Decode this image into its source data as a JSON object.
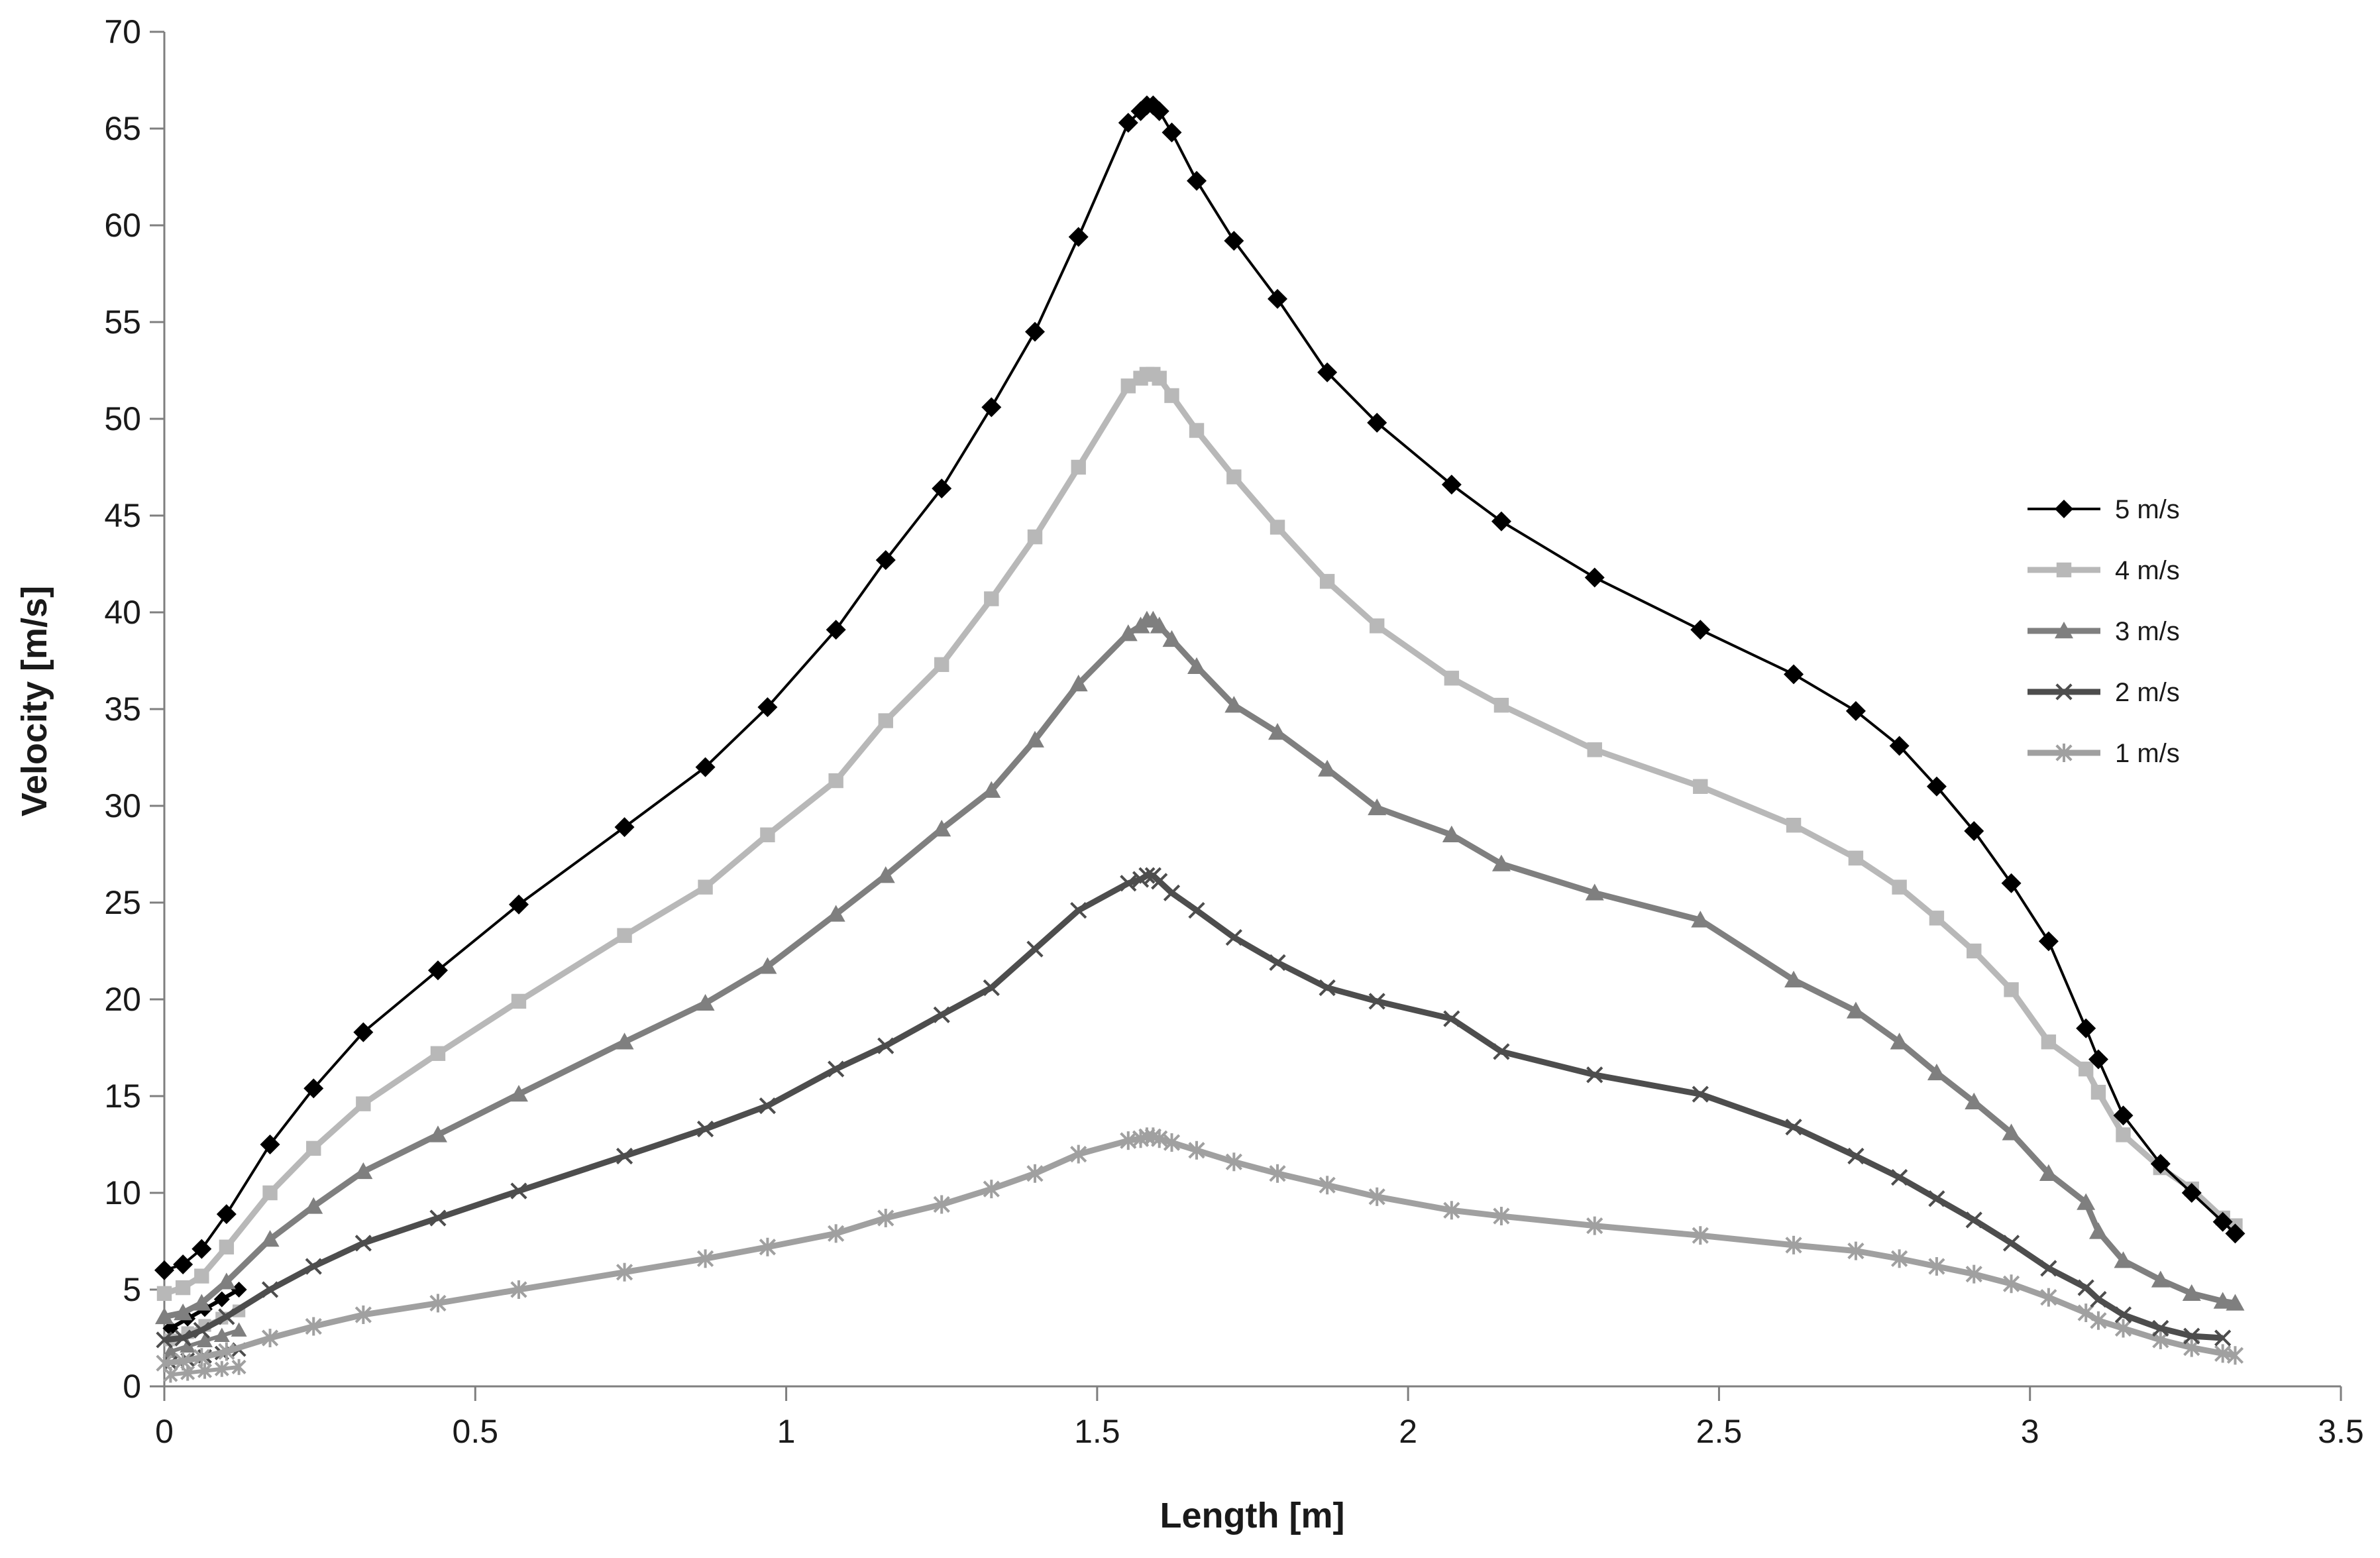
{
  "chart_data": {
    "type": "line",
    "title": "",
    "xlabel": "Length [m]",
    "ylabel": "Velocity [m/s]",
    "xlim": [
      0,
      3.5
    ],
    "ylim": [
      0,
      70
    ],
    "xticks": [
      0,
      0.5,
      1,
      1.5,
      2,
      2.5,
      3,
      3.5
    ],
    "yticks": [
      0,
      5,
      10,
      15,
      20,
      25,
      30,
      35,
      40,
      45,
      50,
      55,
      60,
      65,
      70
    ],
    "xtick_labels": [
      "0",
      "0.5",
      "1",
      "1.5",
      "2",
      "2.5",
      "3",
      "3.5"
    ],
    "ytick_labels": [
      "0",
      "5",
      "10",
      "15",
      "20",
      "25",
      "30",
      "35",
      "40",
      "45",
      "50",
      "55",
      "60",
      "65",
      "70"
    ],
    "grid": false,
    "legend_position": "right",
    "series": [
      {
        "name": "5 m/s",
        "marker": "diamond",
        "color": "#000000",
        "x": [
          0,
          0.03,
          0.06,
          0.1,
          0.17,
          0.24,
          0.32,
          0.44,
          0.57,
          0.74,
          0.87,
          0.97,
          1.08,
          1.16,
          1.25,
          1.33,
          1.4,
          1.47,
          1.55,
          1.57,
          1.58,
          1.59,
          1.6,
          1.62,
          1.66,
          1.72,
          1.79,
          1.87,
          1.95,
          2.07,
          2.15,
          2.3,
          2.47,
          2.62,
          2.72,
          2.79,
          2.85,
          2.91,
          2.97,
          3.03,
          3.09,
          3.11,
          3.15,
          3.21,
          3.26,
          3.31,
          3.33
        ],
        "y": [
          6,
          6.3,
          7.1,
          8.9,
          12.5,
          15.4,
          18.3,
          21.5,
          24.9,
          28.9,
          32.0,
          35.1,
          39.1,
          42.7,
          46.4,
          50.6,
          54.5,
          59.4,
          65.3,
          65.9,
          66.2,
          66.2,
          65.9,
          64.8,
          62.3,
          59.2,
          56.2,
          52.4,
          49.8,
          46.6,
          44.7,
          41.8,
          39.1,
          36.8,
          34.9,
          33.1,
          31.0,
          28.7,
          26.0,
          23.0,
          18.5,
          16.9,
          14.0,
          11.5,
          10.0,
          8.5,
          7.9
        ]
      },
      {
        "name": "4 m/s",
        "marker": "square",
        "color": "#b8b8b8",
        "x": [
          0,
          0.03,
          0.06,
          0.1,
          0.17,
          0.24,
          0.32,
          0.44,
          0.57,
          0.74,
          0.87,
          0.97,
          1.08,
          1.16,
          1.25,
          1.33,
          1.4,
          1.47,
          1.55,
          1.57,
          1.58,
          1.59,
          1.6,
          1.62,
          1.66,
          1.72,
          1.79,
          1.87,
          1.95,
          2.07,
          2.15,
          2.3,
          2.47,
          2.62,
          2.72,
          2.79,
          2.85,
          2.91,
          2.97,
          3.03,
          3.09,
          3.11,
          3.15,
          3.21,
          3.26,
          3.31,
          3.33
        ],
        "y": [
          4.8,
          5.1,
          5.7,
          7.2,
          10.0,
          12.3,
          14.6,
          17.2,
          19.9,
          23.3,
          25.8,
          28.5,
          31.3,
          34.4,
          37.3,
          40.7,
          43.9,
          47.5,
          51.7,
          52.1,
          52.3,
          52.3,
          52.1,
          51.2,
          49.4,
          47.0,
          44.4,
          41.6,
          39.3,
          36.6,
          35.2,
          32.9,
          31.0,
          29.0,
          27.3,
          25.8,
          24.2,
          22.5,
          20.5,
          17.8,
          16.4,
          15.2,
          13.0,
          11.3,
          10.2,
          8.7,
          8.3
        ]
      },
      {
        "name": "3 m/s",
        "marker": "triangle",
        "color": "#7f7f7f",
        "x": [
          0,
          0.03,
          0.06,
          0.1,
          0.17,
          0.24,
          0.32,
          0.44,
          0.57,
          0.74,
          0.87,
          0.97,
          1.08,
          1.16,
          1.25,
          1.33,
          1.4,
          1.47,
          1.55,
          1.57,
          1.58,
          1.59,
          1.6,
          1.62,
          1.66,
          1.72,
          1.79,
          1.87,
          1.95,
          2.07,
          2.15,
          2.3,
          2.47,
          2.62,
          2.72,
          2.79,
          2.85,
          2.91,
          2.97,
          3.03,
          3.09,
          3.11,
          3.15,
          3.21,
          3.26,
          3.31,
          3.33
        ],
        "y": [
          3.6,
          3.8,
          4.3,
          5.4,
          7.6,
          9.3,
          11.1,
          13.0,
          15.1,
          17.8,
          19.8,
          21.7,
          24.4,
          26.4,
          28.8,
          30.8,
          33.4,
          36.3,
          38.9,
          39.3,
          39.6,
          39.6,
          39.3,
          38.6,
          37.2,
          35.2,
          33.8,
          31.9,
          29.9,
          28.5,
          27.0,
          25.5,
          24.1,
          21.0,
          19.4,
          17.8,
          16.2,
          14.7,
          13.1,
          11.0,
          9.5,
          8.0,
          6.5,
          5.5,
          4.8,
          4.4,
          4.3
        ]
      },
      {
        "name": "2 m/s",
        "marker": "x",
        "color": "#4d4d4d",
        "x": [
          0,
          0.03,
          0.06,
          0.1,
          0.17,
          0.24,
          0.32,
          0.44,
          0.57,
          0.74,
          0.87,
          0.97,
          1.08,
          1.16,
          1.25,
          1.33,
          1.4,
          1.47,
          1.55,
          1.57,
          1.58,
          1.59,
          1.6,
          1.62,
          1.66,
          1.72,
          1.79,
          1.87,
          1.95,
          2.07,
          2.15,
          2.3,
          2.47,
          2.62,
          2.72,
          2.79,
          2.85,
          2.91,
          2.97,
          3.03,
          3.09,
          3.11,
          3.15,
          3.21,
          3.26,
          3.31
        ],
        "y": [
          2.4,
          2.5,
          2.9,
          3.6,
          5.0,
          6.2,
          7.4,
          8.7,
          10.1,
          11.9,
          13.3,
          14.5,
          16.4,
          17.6,
          19.2,
          20.6,
          22.6,
          24.6,
          26.0,
          26.2,
          26.4,
          26.4,
          26.1,
          25.5,
          24.6,
          23.2,
          21.9,
          20.6,
          19.9,
          19.0,
          17.3,
          16.1,
          15.1,
          13.4,
          11.9,
          10.8,
          9.7,
          8.6,
          7.4,
          6.1,
          5.1,
          4.5,
          3.7,
          3.0,
          2.6,
          2.5
        ]
      },
      {
        "name": "1 m/s",
        "marker": "star",
        "color": "#a0a0a0",
        "x": [
          0,
          0.03,
          0.06,
          0.1,
          0.17,
          0.24,
          0.32,
          0.44,
          0.57,
          0.74,
          0.87,
          0.97,
          1.08,
          1.16,
          1.25,
          1.33,
          1.4,
          1.47,
          1.55,
          1.57,
          1.58,
          1.59,
          1.6,
          1.62,
          1.66,
          1.72,
          1.79,
          1.87,
          1.95,
          2.07,
          2.15,
          2.3,
          2.47,
          2.62,
          2.72,
          2.79,
          2.85,
          2.91,
          2.97,
          3.03,
          3.09,
          3.11,
          3.15,
          3.21,
          3.26,
          3.31,
          3.33
        ],
        "y": [
          1.2,
          1.3,
          1.5,
          1.8,
          2.5,
          3.1,
          3.7,
          4.3,
          5.0,
          5.9,
          6.6,
          7.2,
          7.9,
          8.7,
          9.4,
          10.2,
          11.0,
          12.0,
          12.7,
          12.8,
          12.9,
          12.9,
          12.8,
          12.6,
          12.2,
          11.6,
          11.0,
          10.4,
          9.8,
          9.1,
          8.8,
          8.3,
          7.8,
          7.3,
          7.0,
          6.6,
          6.2,
          5.8,
          5.3,
          4.6,
          3.8,
          3.4,
          3.0,
          2.4,
          2.0,
          1.7,
          1.6
        ]
      }
    ],
    "inset_cluster": [
      {
        "x": [
          0.01,
          0.12
        ],
        "y": [
          3.0,
          5.0
        ],
        "color": "#000000",
        "marker": "diamond"
      },
      {
        "x": [
          0.01,
          0.12
        ],
        "y": [
          2.4,
          3.9
        ],
        "color": "#b8b8b8",
        "marker": "square"
      },
      {
        "x": [
          0.01,
          0.12
        ],
        "y": [
          1.8,
          2.9
        ],
        "color": "#7f7f7f",
        "marker": "triangle"
      },
      {
        "x": [
          0.01,
          0.12
        ],
        "y": [
          1.2,
          1.9
        ],
        "color": "#4d4d4d",
        "marker": "x"
      },
      {
        "x": [
          0.01,
          0.12
        ],
        "y": [
          0.6,
          1.0
        ],
        "color": "#a0a0a0",
        "marker": "star"
      }
    ]
  }
}
